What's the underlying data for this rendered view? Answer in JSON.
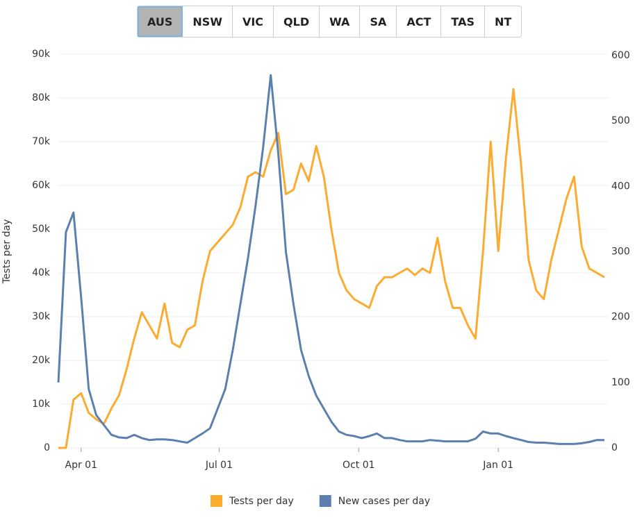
{
  "tabs": [
    "AUS",
    "NSW",
    "VIC",
    "QLD",
    "WA",
    "SA",
    "ACT",
    "TAS",
    "NT"
  ],
  "selected_tab": 0,
  "chart_data": {
    "type": "line",
    "y_label": "Tests per day",
    "x": [
      "Mar 17",
      "Mar 22",
      "Mar 27",
      "Apr 01",
      "Apr 06",
      "Apr 11",
      "Apr 16",
      "Apr 21",
      "Apr 26",
      "May 01",
      "May 06",
      "May 11",
      "May 16",
      "May 21",
      "May 26",
      "May 31",
      "Jun 05",
      "Jun 10",
      "Jun 15",
      "Jun 20",
      "Jun 25",
      "Jun 30",
      "Jul 05",
      "Jul 10",
      "Jul 15",
      "Jul 20",
      "Jul 25",
      "Jul 30",
      "Aug 04",
      "Aug 09",
      "Aug 14",
      "Aug 19",
      "Aug 24",
      "Aug 29",
      "Sep 03",
      "Sep 08",
      "Sep 13",
      "Sep 18",
      "Sep 23",
      "Sep 28",
      "Oct 03",
      "Oct 08",
      "Oct 13",
      "Oct 18",
      "Oct 23",
      "Oct 28",
      "Nov 02",
      "Nov 07",
      "Nov 12",
      "Nov 17",
      "Nov 22",
      "Nov 27",
      "Dec 02",
      "Dec 07",
      "Dec 12",
      "Dec 17",
      "Dec 22",
      "Dec 27",
      "Jan 01",
      "Jan 06",
      "Jan 11",
      "Jan 16",
      "Jan 21",
      "Jan 26",
      "Jan 31",
      "Feb 05",
      "Feb 10",
      "Feb 15",
      "Feb 20",
      "Feb 25",
      "Mar 02",
      "Mar 07",
      "Mar 12"
    ],
    "xticks": [
      "Apr 01",
      "Jul 01",
      "Oct 01",
      "Jan 01"
    ],
    "series": [
      {
        "name": "Tests per day",
        "color": "#fbab2f",
        "axis": "y",
        "values": [
          0,
          0,
          11000,
          12500,
          8000,
          6500,
          5500,
          9000,
          12000,
          18000,
          25000,
          31000,
          28000,
          25000,
          33000,
          24000,
          23000,
          27000,
          28000,
          38000,
          45000,
          47000,
          49000,
          51000,
          55000,
          62000,
          63000,
          62000,
          68000,
          72000,
          58000,
          59000,
          65000,
          61000,
          69000,
          62000,
          50000,
          40000,
          36000,
          34000,
          33000,
          32000,
          37000,
          39000,
          39000,
          40000,
          41000,
          39500,
          41000,
          40000,
          48000,
          38000,
          32000,
          32000,
          28000,
          25000,
          45000,
          70000,
          45000,
          66000,
          82000,
          65000,
          43000,
          36000,
          34000,
          43000,
          50000,
          57000,
          62000,
          46000,
          41000,
          40000,
          39000
        ]
      },
      {
        "name": "New cases per day",
        "color": "#5b7fae",
        "axis": "y2",
        "values": [
          100,
          330,
          360,
          230,
          90,
          50,
          35,
          20,
          16,
          15,
          20,
          15,
          12,
          13,
          13,
          12,
          10,
          8,
          15,
          22,
          30,
          60,
          90,
          150,
          220,
          290,
          370,
          460,
          570,
          450,
          300,
          220,
          150,
          110,
          80,
          60,
          40,
          25,
          20,
          18,
          15,
          18,
          22,
          15,
          15,
          12,
          10,
          10,
          10,
          12,
          11,
          10,
          10,
          10,
          10,
          14,
          25,
          22,
          22,
          18,
          15,
          12,
          9,
          8,
          8,
          7,
          6,
          6,
          6,
          7,
          9,
          12,
          12
        ]
      }
    ],
    "ylim": [
      0,
      90000
    ],
    "yticks": [
      0,
      {
        "value": 10000,
        "label": "10k"
      },
      {
        "value": 20000,
        "label": "20k"
      },
      {
        "value": 30000,
        "label": "30k"
      },
      {
        "value": 40000,
        "label": "40k"
      },
      {
        "value": 50000,
        "label": "50k"
      },
      {
        "value": 60000,
        "label": "60k"
      },
      {
        "value": 70000,
        "label": "70k"
      },
      {
        "value": 80000,
        "label": "80k"
      },
      {
        "value": 90000,
        "label": "90k"
      }
    ],
    "y2lim": [
      0,
      600
    ],
    "y2ticks": [
      0,
      100,
      200,
      300,
      400,
      500,
      600
    ],
    "grid": true,
    "legend": "bottom"
  }
}
